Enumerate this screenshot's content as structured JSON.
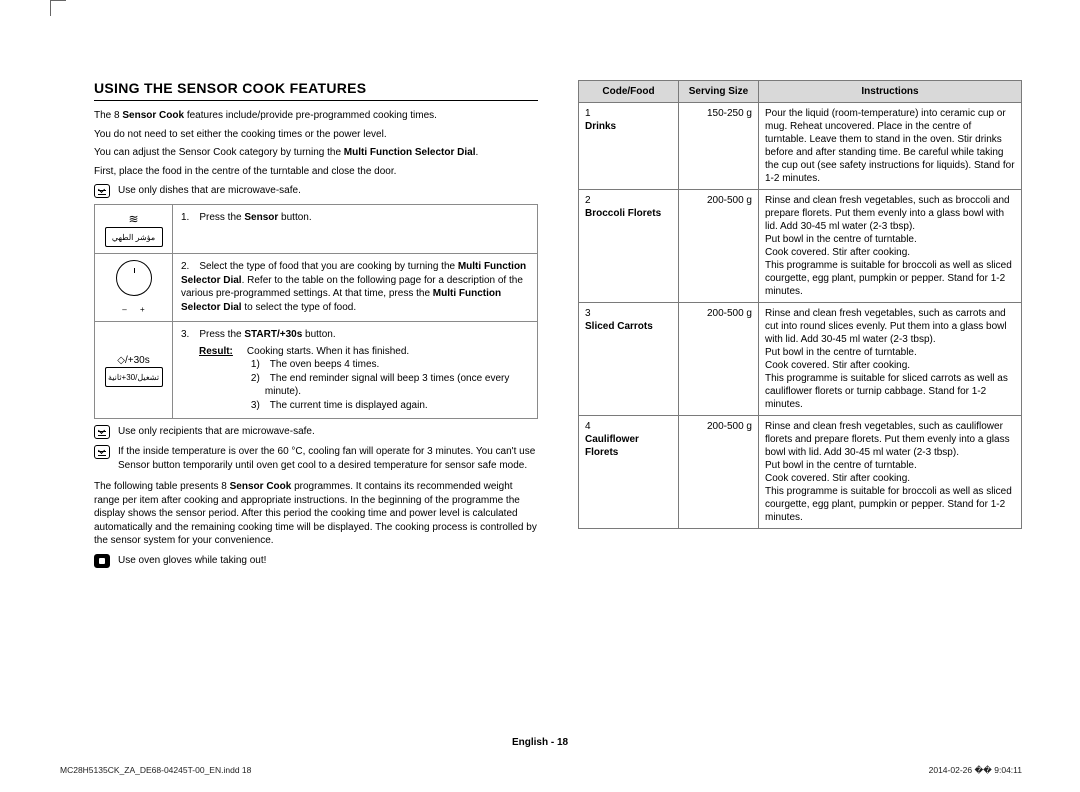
{
  "title": "USING THE SENSOR COOK FEATURES",
  "intro": {
    "line1a": "The 8 ",
    "line1b_bold": "Sensor Cook",
    "line1c": " features include/provide pre-programmed cooking times.",
    "line2": "You do not need to set either the cooking times or the power level.",
    "line3a": "You can adjust the Sensor Cook category by turning the ",
    "line3b_bold": "Multi Function Selector Dial",
    "line3c": ".",
    "line4": "First, place the food in the centre of the turntable and close the door."
  },
  "notes": {
    "n1": "Use only dishes that are microwave-safe.",
    "n2": "Use only recipients that are microwave-safe.",
    "n3": "If the inside temperature is over the 60 °C, cooling fan will operate for 3 minutes. You can't use Sensor button temporarily until oven get cool to a desired temperature for sensor safe mode.",
    "n4": "Use oven gloves while taking out!"
  },
  "steps": {
    "s1_a": "1. Press the ",
    "s1_b_bold": "Sensor",
    "s1_c": " button.",
    "s2_a": "2. Select the type of food that you are cooking by turning the ",
    "s2_b_bold": "Multi Function Selector Dial",
    "s2_c": ". Refer to the table on the following page for a description of the various pre-programmed settings. At that time, press the ",
    "s2_d_bold": "Multi Function Selector Dial",
    "s2_e": " to select the type of food.",
    "s3_a": "3. Press the ",
    "s3_b_bold": "START/+30s",
    "s3_c": " button.",
    "result_label": "Result:",
    "result_text": "Cooking starts. When it has finished.",
    "r1": "1) The oven beeps 4 times.",
    "r2": "2) The end reminder signal will beep 3 times (once every minute).",
    "r3": "3) The current time is displayed again."
  },
  "after_steps": {
    "p1a": "The following table presents 8 ",
    "p1b_bold": "Sensor Cook",
    "p1c": " programmes. It contains its recommended weight range per item after cooking and appropriate instructions. In the beginning of the programme the display shows the sensor period. After this period the cooking time and power level is calculated automatically and the remaining cooking time will be displayed. The cooking process is controlled by the sensor system for your convenience."
  },
  "icon_labels": {
    "sensor_ar": "مؤشر الطهي",
    "start_en": "/+30s",
    "start_ar": "تشغيل/30+ثانية"
  },
  "food_table": {
    "headers": {
      "code": "Code/Food",
      "size": "Serving Size",
      "instr": "Instructions"
    },
    "rows": [
      {
        "num": "1",
        "name": "Drinks",
        "size": "150-250 g",
        "instr": "Pour the liquid (room-temperature) into ceramic cup or mug. Reheat uncovered. Place in the centre of turntable. Leave them to stand in the oven. Stir drinks before and after standing time. Be careful while taking the cup out (see safety instructions for liquids). Stand for 1-2 minutes."
      },
      {
        "num": "2",
        "name": "Broccoli Florets",
        "size": "200-500 g",
        "instr": "Rinse and clean fresh vegetables, such as broccoli and prepare florets. Put them evenly into a glass bowl with lid. Add 30-45 ml water (2-3 tbsp).\nPut bowl in the centre of turntable.\nCook covered. Stir after cooking.\nThis programme is suitable for broccoli as well as sliced courgette, egg plant, pumpkin or pepper. Stand for 1-2 minutes."
      },
      {
        "num": "3",
        "name": "Sliced Carrots",
        "size": "200-500 g",
        "instr": "Rinse and clean fresh vegetables, such as carrots and cut into round slices evenly. Put them into a glass bowl with lid. Add 30-45 ml water (2-3 tbsp).\nPut bowl in the centre of turntable.\nCook covered. Stir after cooking.\nThis programme is suitable for sliced carrots as well as cauliflower florets or turnip cabbage. Stand for 1-2 minutes."
      },
      {
        "num": "4",
        "name": "Cauliflower Florets",
        "size": "200-500 g",
        "instr": "Rinse and clean fresh vegetables, such as cauliflower florets and prepare florets. Put them evenly into a glass bowl with lid. Add 30-45 ml water (2-3 tbsp).\nPut bowl in the centre of turntable.\nCook covered. Stir after cooking.\nThis programme is suitable for broccoli as well as sliced courgette, egg plant, pumpkin or pepper. Stand for 1-2 minutes."
      }
    ]
  },
  "footer": {
    "center": "English - 18",
    "left": "MC28H5135CK_ZA_DE68-04245T-00_EN.indd   18",
    "right": "2014-02-26   �� 9:04:11"
  }
}
